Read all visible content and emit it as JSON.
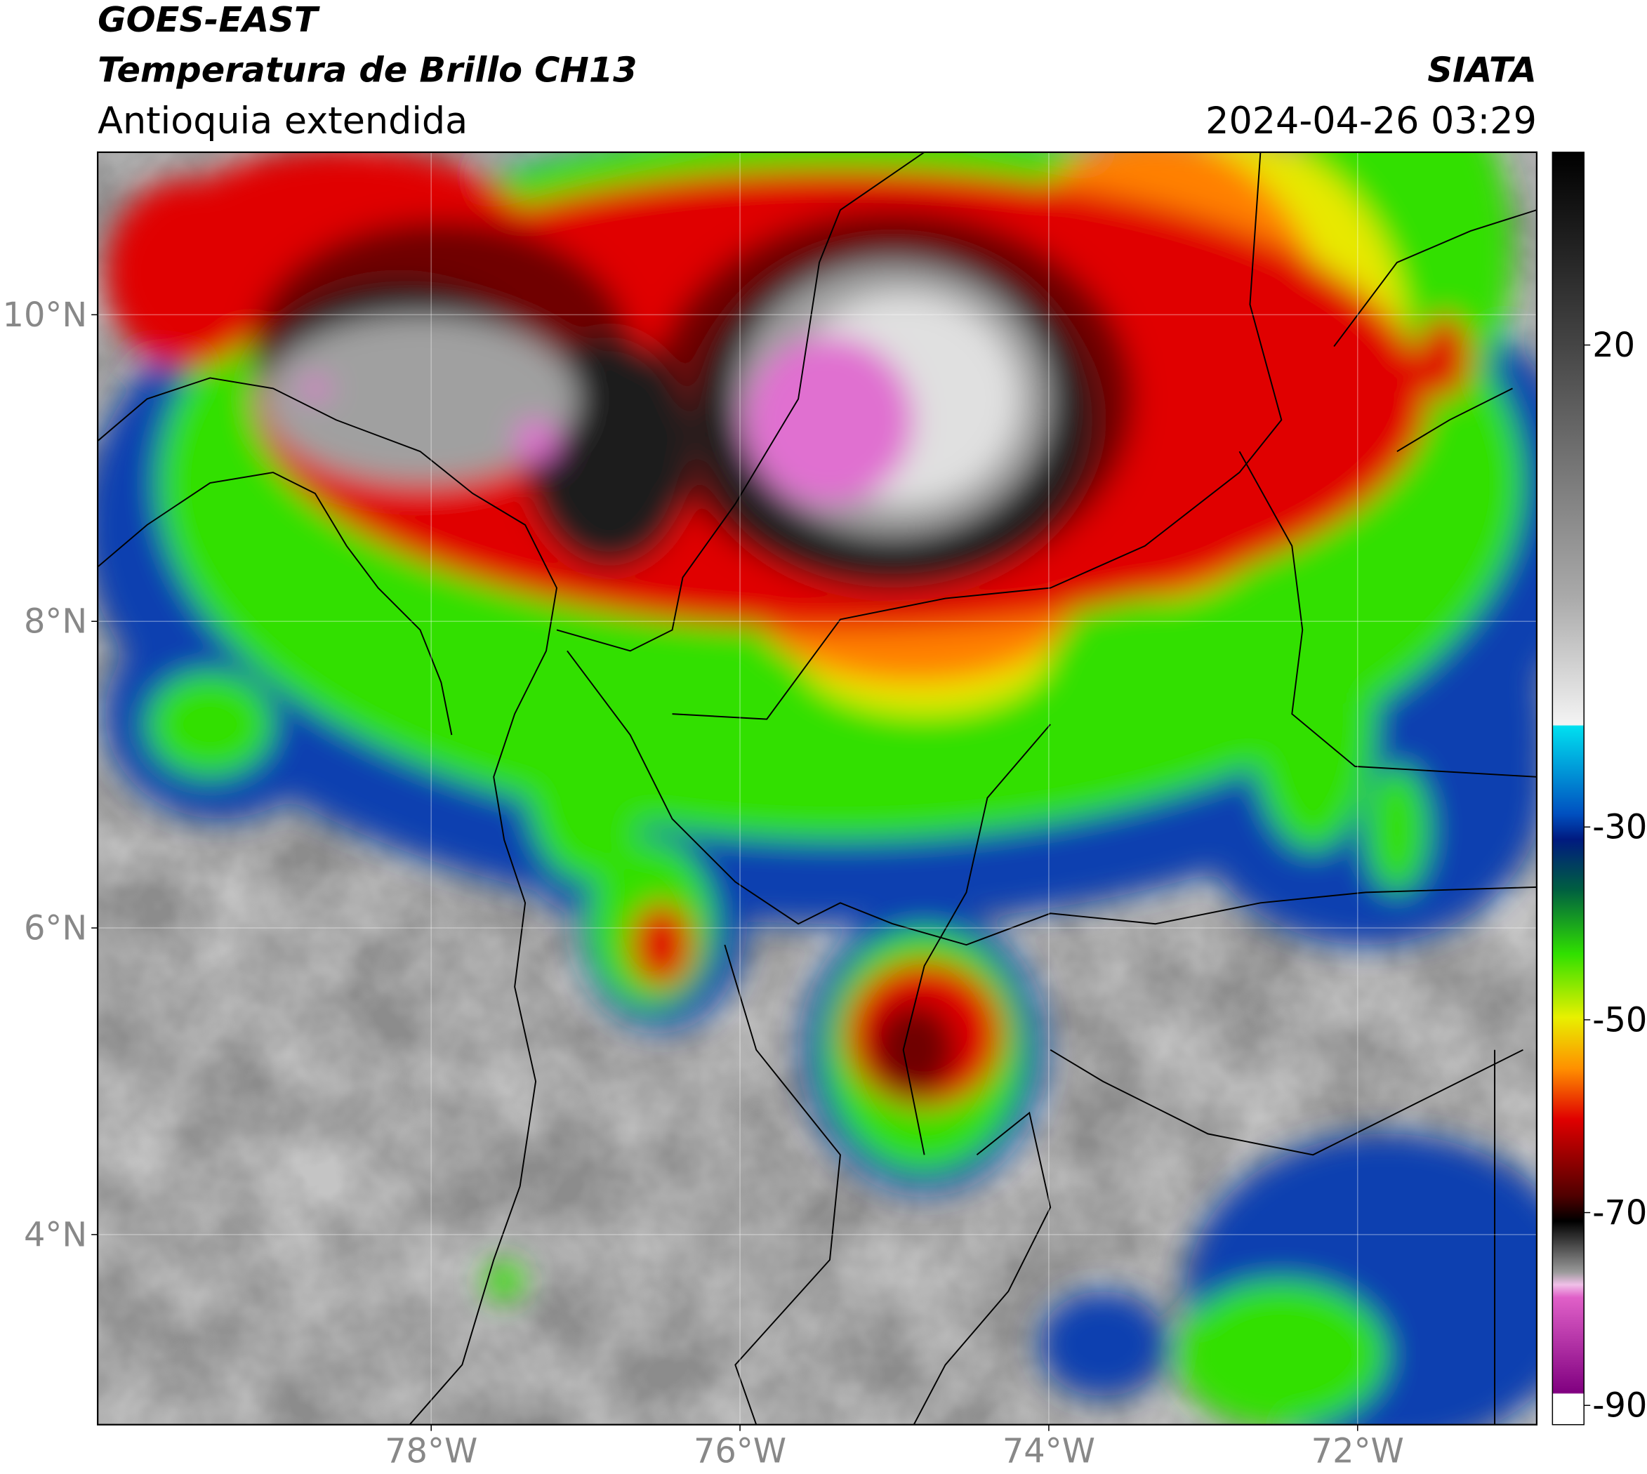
{
  "chart_data": {
    "type": "map",
    "title": "GOES-EAST",
    "subtitle": "Temperatura de Brillo CH13",
    "region": "Antioquia extendida",
    "source": "SIATA",
    "datetime": "2024-04-26 03:29",
    "xlim": [
      -80.16,
      -70.84
    ],
    "ylim": [
      2.76,
      11.06
    ],
    "xticks": [
      {
        "value": -78,
        "label": "78°W"
      },
      {
        "value": -76,
        "label": "76°W"
      },
      {
        "value": -74,
        "label": "74°W"
      },
      {
        "value": -72,
        "label": "72°W"
      }
    ],
    "yticks": [
      {
        "value": 4,
        "label": "4°N"
      },
      {
        "value": 6,
        "label": "6°N"
      },
      {
        "value": 8,
        "label": "8°N"
      },
      {
        "value": 10,
        "label": "10°N"
      }
    ],
    "grid": true,
    "colorbar": {
      "lim": [
        -92,
        40
      ],
      "ticks": [
        20,
        -30,
        -50,
        -70,
        -90
      ]
    }
  }
}
